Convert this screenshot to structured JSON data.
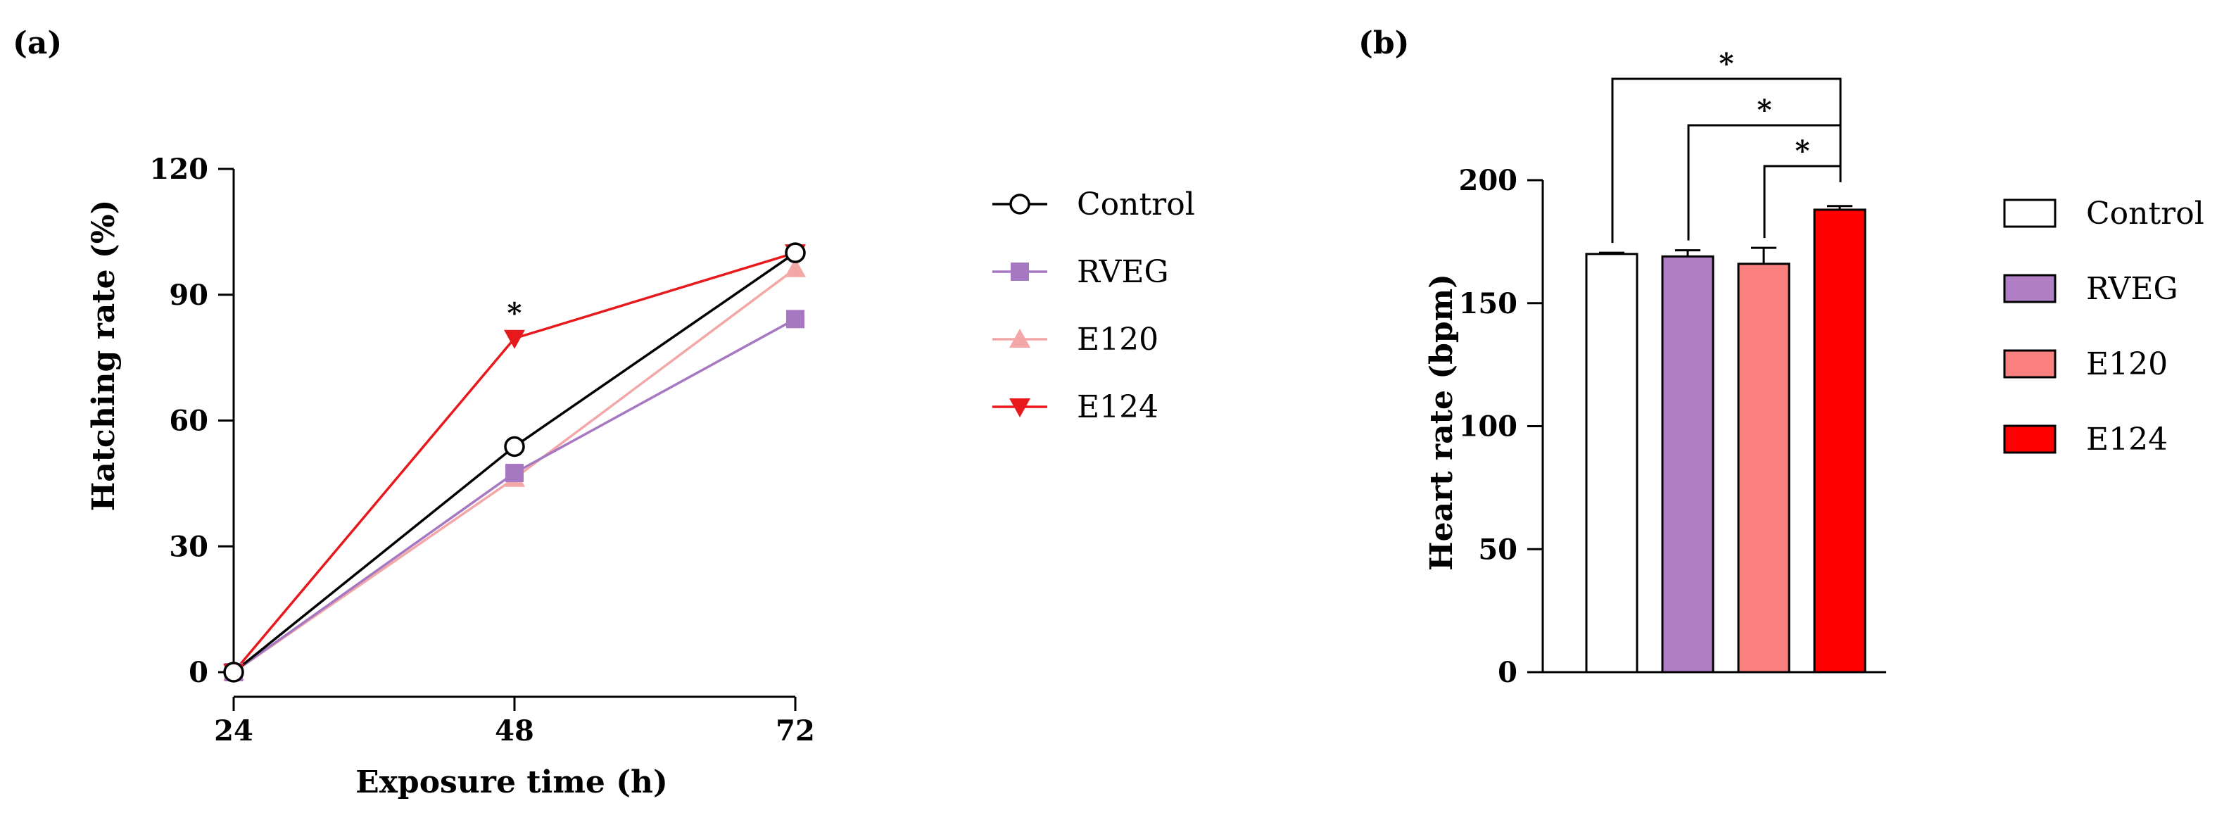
{
  "chart_data": [
    {
      "panel_label": "(a)",
      "type": "line",
      "xlabel": "Exposure time (h)",
      "ylabel": "Hatching rate (%)",
      "x": [
        24,
        48,
        72
      ],
      "x_ticks": [
        "24",
        "48",
        "72"
      ],
      "ylim": [
        0,
        120
      ],
      "y_ticks": [
        "0",
        "30",
        "60",
        "90",
        "120"
      ],
      "grid": false,
      "legend_position": "right",
      "series": [
        {
          "name": "Control",
          "values": [
            0,
            53.8,
            100
          ],
          "color": "#000000",
          "marker": "open-circle"
        },
        {
          "name": "RVEG",
          "values": [
            0,
            47.5,
            84.2
          ],
          "color": "#a678c2",
          "marker": "square"
        },
        {
          "name": "E120",
          "values": [
            0,
            46.2,
            96.2
          ],
          "color": "#f4a7a7",
          "marker": "triangle-up"
        },
        {
          "name": "E124",
          "values": [
            0,
            79.6,
            100
          ],
          "color": "#e8191c",
          "marker": "triangle-down"
        }
      ],
      "annotations": [
        {
          "text": "*",
          "x": 48,
          "y": 87
        }
      ]
    },
    {
      "panel_label": "(b)",
      "type": "bar",
      "xlabel": "",
      "ylabel": "Heart rate (bpm)",
      "categories": [
        "Control",
        "RVEG",
        "E120",
        "E124"
      ],
      "values": [
        170,
        169,
        166,
        188
      ],
      "errors": [
        0.5,
        2.5,
        6.5,
        1.5
      ],
      "colors": [
        "#ffffff",
        "#b07ec4",
        "#fa8080",
        "#ff0000"
      ],
      "ylim": [
        0,
        200
      ],
      "y_ticks": [
        "0",
        "50",
        "100",
        "150",
        "200"
      ],
      "grid": false,
      "legend_position": "right",
      "significance": [
        {
          "from": "Control",
          "to": "E124",
          "text": "*"
        },
        {
          "from": "RVEG",
          "to": "E124",
          "text": "*"
        },
        {
          "from": "E120",
          "to": "E124",
          "text": "*"
        }
      ]
    }
  ]
}
